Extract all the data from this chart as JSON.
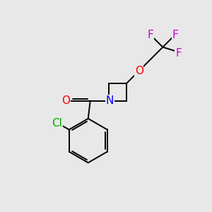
{
  "bg_color": "#e8e8e8",
  "bond_color": "#000000",
  "atom_colors": {
    "Cl": "#00aa00",
    "O_carbonyl": "#ff0000",
    "O_ether": "#ff0000",
    "N": "#0000ff",
    "F": "#cc00cc"
  },
  "font_size_atoms": 11,
  "font_size_F": 11,
  "lw": 1.4
}
